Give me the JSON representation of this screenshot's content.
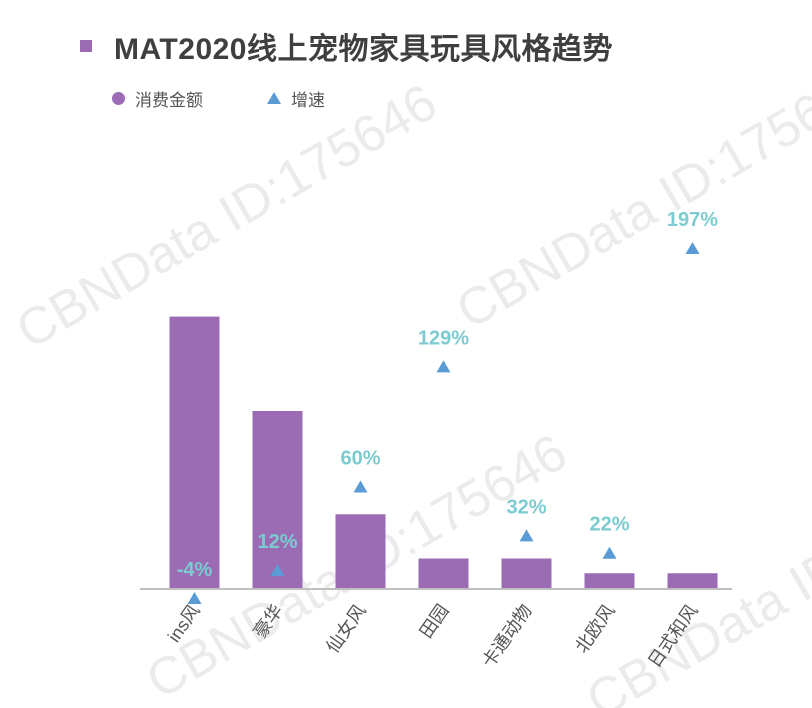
{
  "title": "MAT2020线上宠物家具玩具风格趋势",
  "legend": {
    "amount_label": "消费金额",
    "growth_label": "增速"
  },
  "watermark": "CBNData ID:175646",
  "colors": {
    "bar": "#9b6bb3",
    "marker": "#5b9bd5",
    "rate_label": "#7ccbd0",
    "axis": "#bfbfbf"
  },
  "chart_data": {
    "type": "bar",
    "title": "MAT2020线上宠物家具玩具风格趋势",
    "categories": [
      "ins风",
      "豪华",
      "仙女风",
      "田园",
      "卡通动物",
      "北欧风",
      "日式和风"
    ],
    "series": [
      {
        "name": "消费金额",
        "type": "bar",
        "axis": "left",
        "values": [
          92,
          60,
          25,
          10,
          10,
          5,
          5
        ]
      },
      {
        "name": "增速",
        "type": "scatter",
        "marker": "triangle",
        "axis": "right",
        "values": [
          -4,
          12,
          60,
          129,
          32,
          22,
          197
        ]
      }
    ],
    "data_labels": [
      "-4%",
      "12%",
      "60%",
      "129%",
      "32%",
      "22%",
      "197%"
    ],
    "ylim_left": [
      0,
      100
    ],
    "ylim_right": [
      -4,
      197
    ],
    "legend_position": "top-left",
    "grid": false
  }
}
